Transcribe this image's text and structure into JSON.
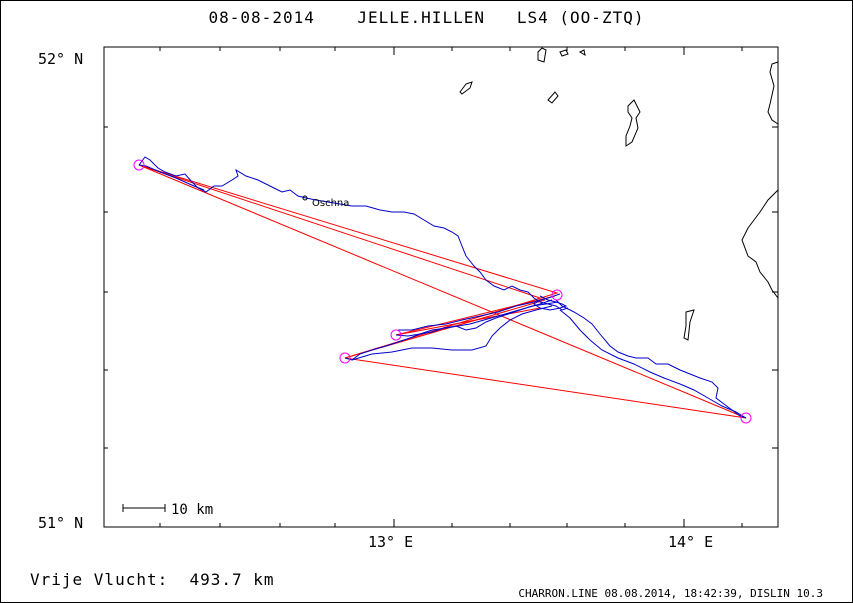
{
  "header": {
    "date": "08-08-2014",
    "pilot": "JELLE.HILLEN",
    "glider": "LS4 (OO-ZTQ)"
  },
  "axes": {
    "lat_top": "52° N",
    "lat_bottom": "51° N",
    "lon_1": "13° E",
    "lon_2": "14° E"
  },
  "map": {
    "scale_label": "10 km",
    "place_label": "Oschna",
    "track_color": "#0000cc",
    "task_color": "#ff0000",
    "turnpoint_color": "#ff00ff",
    "coastline_color": "#000000"
  },
  "footer": {
    "distance": "Vrije Vlucht:  493.7 km",
    "credit": "CHARRON.LINE 08.08.2014, 18:42:39, DISLIN 10.3"
  }
}
